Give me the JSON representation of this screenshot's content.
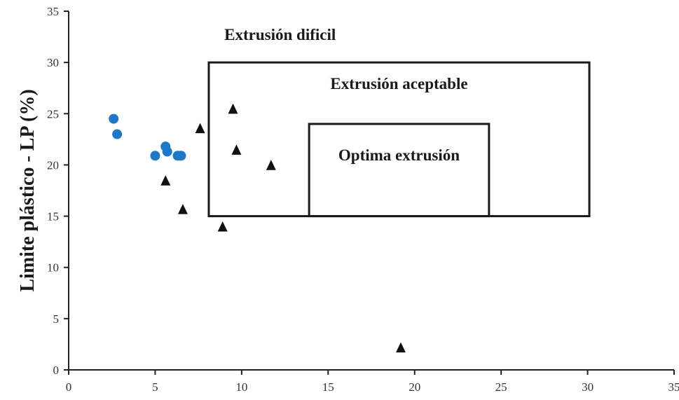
{
  "chart_data": {
    "type": "scatter",
    "xlim": [
      0,
      35
    ],
    "ylim": [
      0,
      35
    ],
    "x_ticks": [
      "0",
      "5",
      "10",
      "15",
      "20",
      "25",
      "30",
      "35"
    ],
    "y_ticks": [
      "0",
      "5",
      "10",
      "15",
      "20",
      "25",
      "30",
      "35"
    ],
    "xlabel": "",
    "ylabel": "Limite plástico - LP (%)",
    "grid": false,
    "series": [
      {
        "marker": "circle",
        "color": "#1f77c8",
        "points": [
          {
            "x": 2.6,
            "y": 24.5
          },
          {
            "x": 2.8,
            "y": 23.0
          },
          {
            "x": 5.0,
            "y": 20.9
          },
          {
            "x": 5.6,
            "y": 21.8
          },
          {
            "x": 5.7,
            "y": 21.3
          },
          {
            "x": 6.3,
            "y": 20.9
          },
          {
            "x": 6.5,
            "y": 20.9
          }
        ]
      },
      {
        "marker": "triangle",
        "color": "#111111",
        "points": [
          {
            "x": 5.6,
            "y": 18.4
          },
          {
            "x": 6.6,
            "y": 15.6
          },
          {
            "x": 7.6,
            "y": 23.5
          },
          {
            "x": 8.9,
            "y": 13.9
          },
          {
            "x": 9.5,
            "y": 25.4
          },
          {
            "x": 9.7,
            "y": 21.4
          },
          {
            "x": 11.7,
            "y": 19.9
          },
          {
            "x": 19.2,
            "y": 2.1
          }
        ]
      }
    ],
    "regions": [
      {
        "label": "Extrusión aceptable",
        "x": [
          8.1,
          30.1
        ],
        "y": [
          15,
          30
        ]
      },
      {
        "label": "Optima extrusión",
        "x": [
          13.9,
          24.3
        ],
        "y": [
          15,
          24
        ]
      }
    ],
    "annotations": [
      {
        "text": "Extrusión dificil",
        "x": 9.0,
        "y": 32.2
      }
    ]
  }
}
